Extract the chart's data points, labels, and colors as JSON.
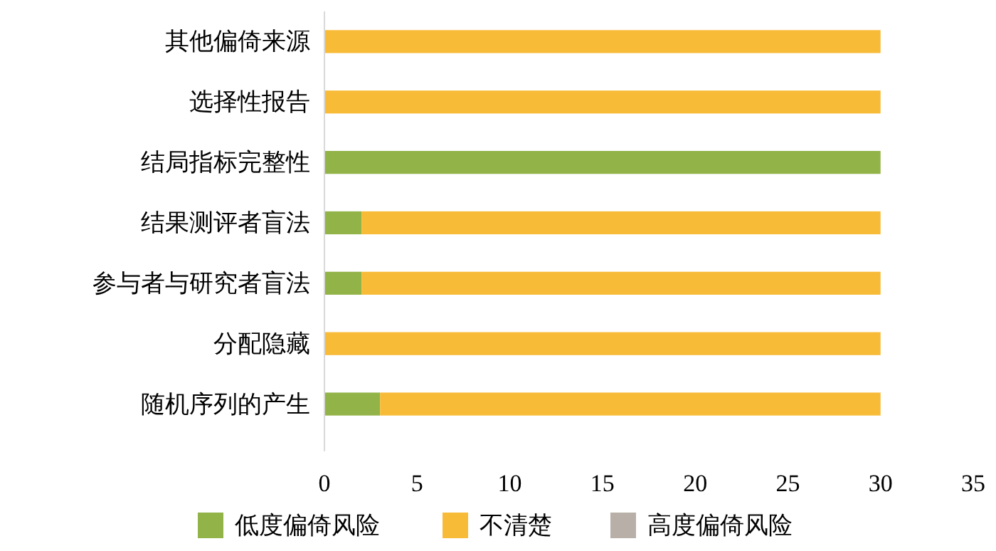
{
  "chart_data": {
    "type": "bar",
    "orientation": "horizontal",
    "stacked": true,
    "categories": [
      "其他偏倚来源",
      "选择性报告",
      "结局指标完整性",
      "结果测评者盲法",
      "参与者与研究者盲法",
      "分配隐藏",
      "随机序列的产生"
    ],
    "series": [
      {
        "name": "低度偏倚风险",
        "color": "#92b348",
        "values": [
          0,
          0,
          30,
          2,
          2,
          0,
          3
        ]
      },
      {
        "name": "不清楚",
        "color": "#f8bb38",
        "values": [
          30,
          30,
          0,
          28,
          28,
          30,
          27
        ]
      },
      {
        "name": "高度偏倚风险",
        "color": "#b8b0a8",
        "values": [
          0,
          0,
          0,
          0,
          0,
          0,
          0
        ]
      }
    ],
    "xlim": [
      0,
      35
    ],
    "xticks": [
      0,
      5,
      10,
      15,
      20,
      25,
      30,
      35
    ],
    "grid": false,
    "legend": "bottom"
  }
}
